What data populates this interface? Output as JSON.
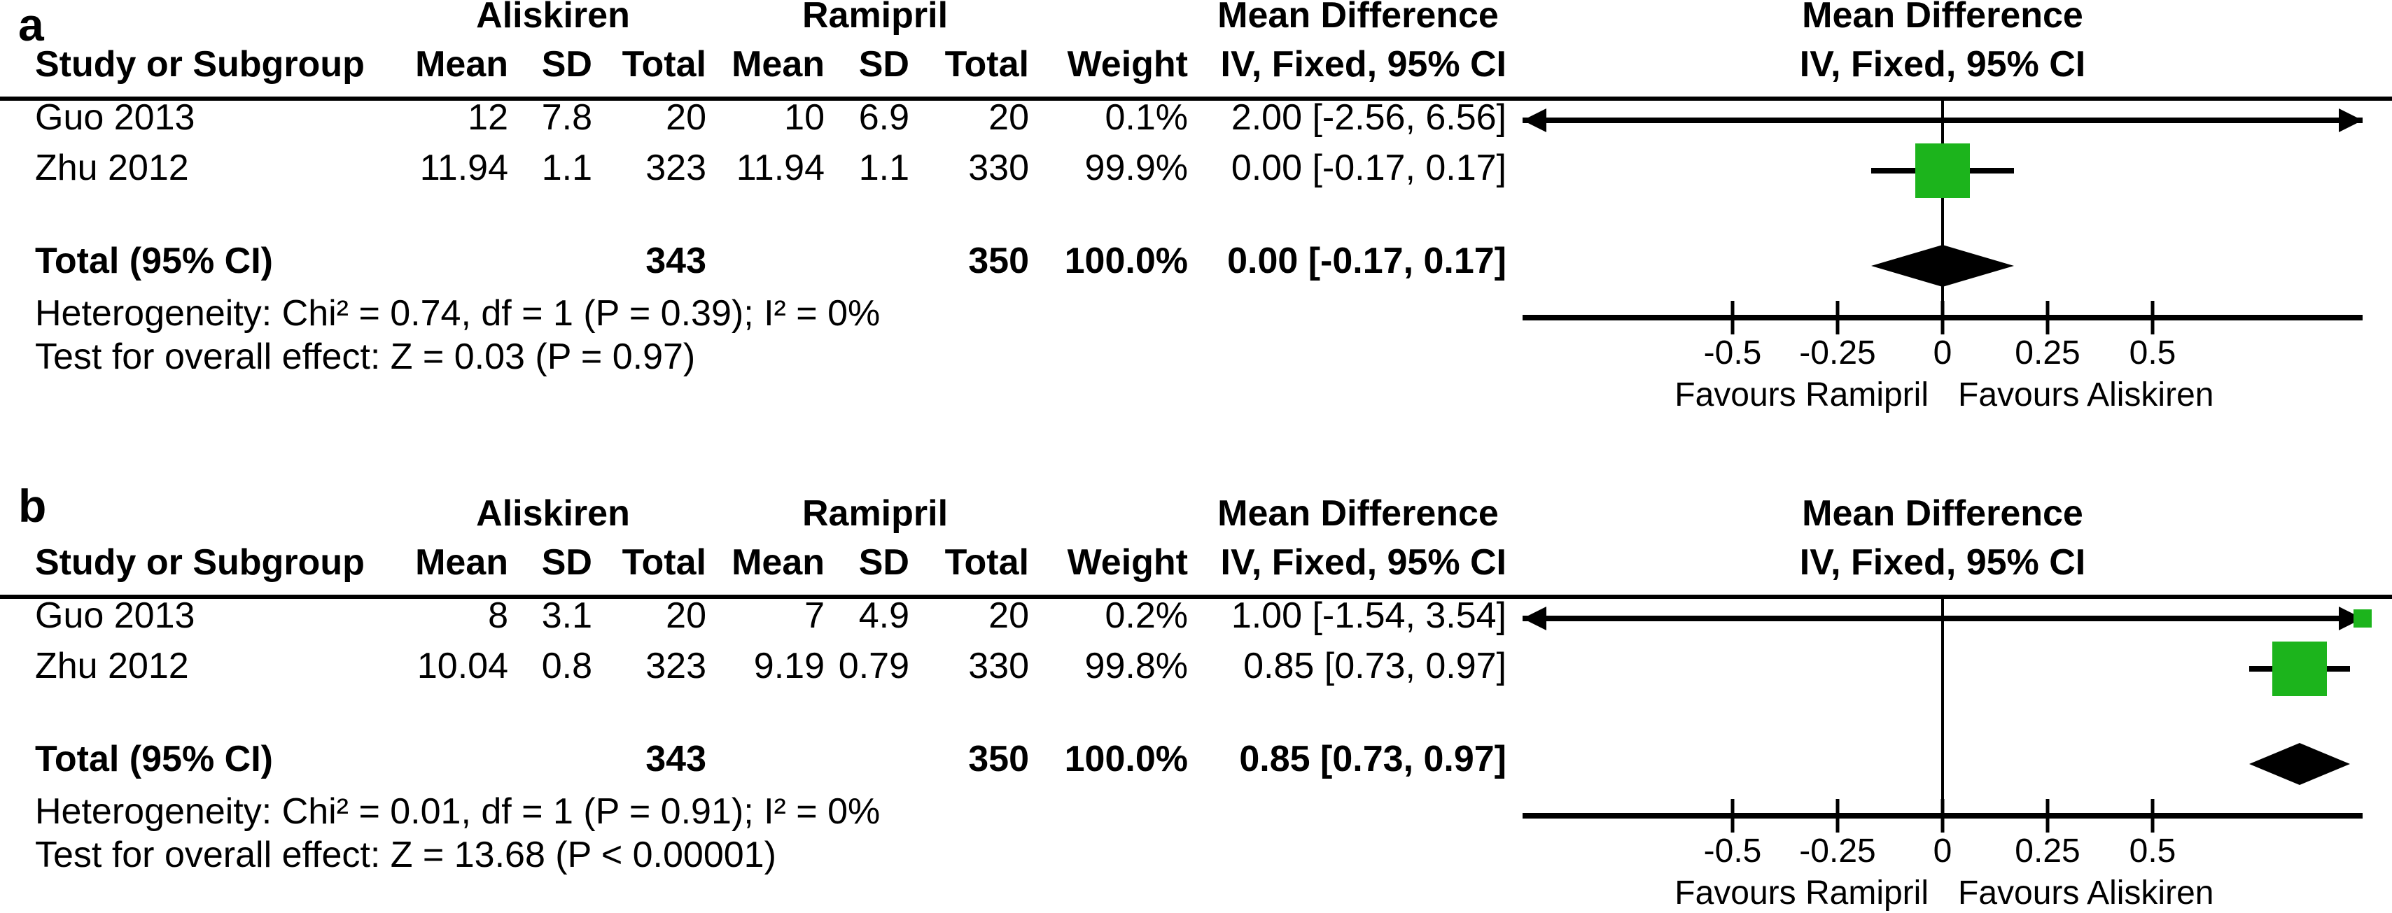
{
  "figure_title": "Forest plot: Aliskiren vs Ramipril, Mean Difference (IV, Fixed, 95% CI)",
  "marker_color": "#1cb41c",
  "diamond_color": "#000000",
  "chart_data": [
    {
      "type": "forest",
      "panel_label": "a",
      "group1_header": "Aliskiren",
      "group2_header": "Ramipril",
      "title": "Mean Difference",
      "subtitle": "IV, Fixed, 95% CI",
      "columns": [
        "Study or Subgroup",
        "Mean",
        "SD",
        "Total",
        "Mean",
        "SD",
        "Total",
        "Weight",
        "IV, Fixed, 95% CI"
      ],
      "studies": [
        {
          "name": "Guo 2013",
          "mean_t": "12",
          "sd_t": "7.8",
          "total_t": "20",
          "mean_c": "10",
          "sd_c": "6.9",
          "total_c": "20",
          "weight": "0.1%",
          "ci_text": "2.00 [-2.56, 6.56]",
          "md": 2.0,
          "ci_low": -2.56,
          "ci_high": 6.56,
          "weight_pct": 0.1
        },
        {
          "name": "Zhu 2012",
          "mean_t": "11.94",
          "sd_t": "1.1",
          "total_t": "323",
          "mean_c": "11.94",
          "sd_c": "1.1",
          "total_c": "330",
          "weight": "99.9%",
          "ci_text": "0.00 [-0.17, 0.17]",
          "md": 0.0,
          "ci_low": -0.17,
          "ci_high": 0.17,
          "weight_pct": 99.9
        }
      ],
      "total": {
        "label": "Total (95% CI)",
        "total_t": "343",
        "total_c": "350",
        "weight": "100.0%",
        "ci_text": "0.00 [-0.17, 0.17]",
        "md": 0.0,
        "ci_low": -0.17,
        "ci_high": 0.17
      },
      "heterogeneity": "Heterogeneity: Chi² = 0.74, df = 1 (P = 0.39); I² = 0%",
      "overall_effect": "Test for overall effect: Z = 0.03 (P = 0.97)",
      "x_axis": {
        "min": -1,
        "max": 1,
        "ticks": [
          -0.5,
          -0.25,
          0,
          0.25,
          0.5
        ],
        "tick_labels": [
          "-0.5",
          "-0.25",
          "0",
          "0.25",
          "0.5"
        ],
        "favours_left": "Favours Ramipril",
        "favours_right": "Favours Aliskiren"
      }
    },
    {
      "type": "forest",
      "panel_label": "b",
      "group1_header": "Aliskiren",
      "group2_header": "Ramipril",
      "title": "Mean Difference",
      "subtitle": "IV, Fixed, 95% CI",
      "columns": [
        "Study or Subgroup",
        "Mean",
        "SD",
        "Total",
        "Mean",
        "SD",
        "Total",
        "Weight",
        "IV, Fixed, 95% CI"
      ],
      "studies": [
        {
          "name": "Guo 2013",
          "mean_t": "8",
          "sd_t": "3.1",
          "total_t": "20",
          "mean_c": "7",
          "sd_c": "4.9",
          "total_c": "20",
          "weight": "0.2%",
          "ci_text": "1.00 [-1.54, 3.54]",
          "md": 1.0,
          "ci_low": -1.54,
          "ci_high": 3.54,
          "weight_pct": 0.2
        },
        {
          "name": "Zhu 2012",
          "mean_t": "10.04",
          "sd_t": "0.8",
          "total_t": "323",
          "mean_c": "9.19",
          "sd_c": "0.79",
          "total_c": "330",
          "weight": "99.8%",
          "ci_text": "0.85 [0.73, 0.97]",
          "md": 0.85,
          "ci_low": 0.73,
          "ci_high": 0.97,
          "weight_pct": 99.8
        }
      ],
      "total": {
        "label": "Total (95% CI)",
        "total_t": "343",
        "total_c": "350",
        "weight": "100.0%",
        "ci_text": "0.85 [0.73, 0.97]",
        "md": 0.85,
        "ci_low": 0.73,
        "ci_high": 0.97
      },
      "heterogeneity": "Heterogeneity: Chi² = 0.01, df = 1 (P = 0.91); I² = 0%",
      "overall_effect": "Test for overall effect: Z = 13.68 (P < 0.00001)",
      "x_axis": {
        "min": -1,
        "max": 1,
        "ticks": [
          -0.5,
          -0.25,
          0,
          0.25,
          0.5
        ],
        "tick_labels": [
          "-0.5",
          "-0.25",
          "0",
          "0.25",
          "0.5"
        ],
        "favours_left": "Favours Ramipril",
        "favours_right": "Favours Aliskiren"
      }
    }
  ]
}
